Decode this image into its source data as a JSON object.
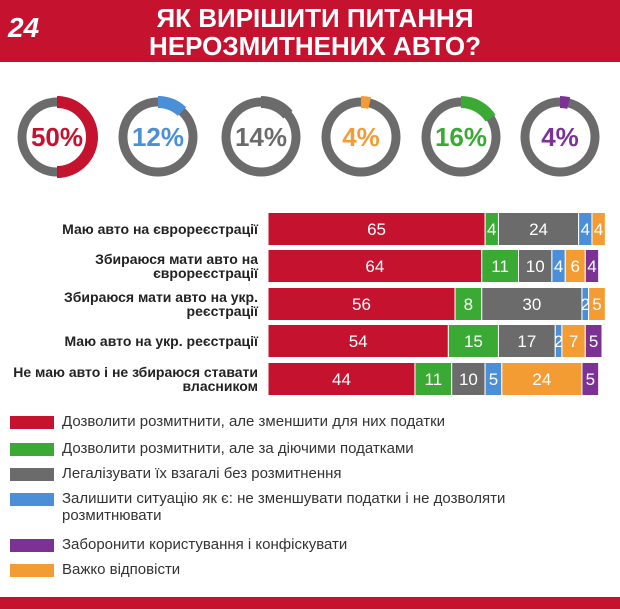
{
  "header": {
    "logo": "24",
    "title": "ЯК ВИРІШИТИ ПИТАННЯ НЕРОЗМИТНЕНИХ АВТО?"
  },
  "chart_data": [
    {
      "type": "donut",
      "values": [
        50,
        12,
        14,
        4,
        16,
        4
      ],
      "value_labels": [
        "50%",
        "12%",
        "14%",
        "4%",
        "16%",
        "4%"
      ],
      "colors": [
        "#c4122f",
        "#4a8fd8",
        "#6b6b6b",
        "#f39c34",
        "#3aaa35",
        "#7b3294"
      ]
    },
    {
      "type": "stacked-bar-horizontal",
      "categories": [
        "Маю авто на єврореєстрації",
        "Збираюся мати авто на єврореєстрації",
        "Збираюся мати авто на укр. реєстрації",
        "Маю авто на укр. реєстрації",
        "Не маю авто і не збираюся ставати власником"
      ],
      "series": [
        {
          "name": "Дозволити розмитнити, але зменшити для них податки",
          "color": "#c4122f",
          "values": [
            65,
            64,
            56,
            54,
            44
          ]
        },
        {
          "name": "Дозволити розмитнити, але за діючими податками",
          "color": "#3aaa35",
          "values": [
            4,
            11,
            8,
            15,
            11
          ]
        },
        {
          "name": "Легалізувати їх взагалі без розмитнення",
          "color": "#6b6b6b",
          "values": [
            24,
            10,
            30,
            17,
            10
          ]
        },
        {
          "name": "Залишити ситуацію як є: не зменшувати податки і не дозволяти розмитнювати",
          "color": "#4a8fd8",
          "values": [
            4,
            4,
            2,
            2,
            5
          ]
        },
        {
          "name": "Заборонити користування і конфіскувати",
          "color": "#7b3294",
          "values": [
            null,
            4,
            null,
            5,
            5
          ]
        },
        {
          "name": "Важко відповісти",
          "color": "#f39c34",
          "values": [
            4,
            6,
            5,
            7,
            24
          ]
        }
      ]
    }
  ]
}
